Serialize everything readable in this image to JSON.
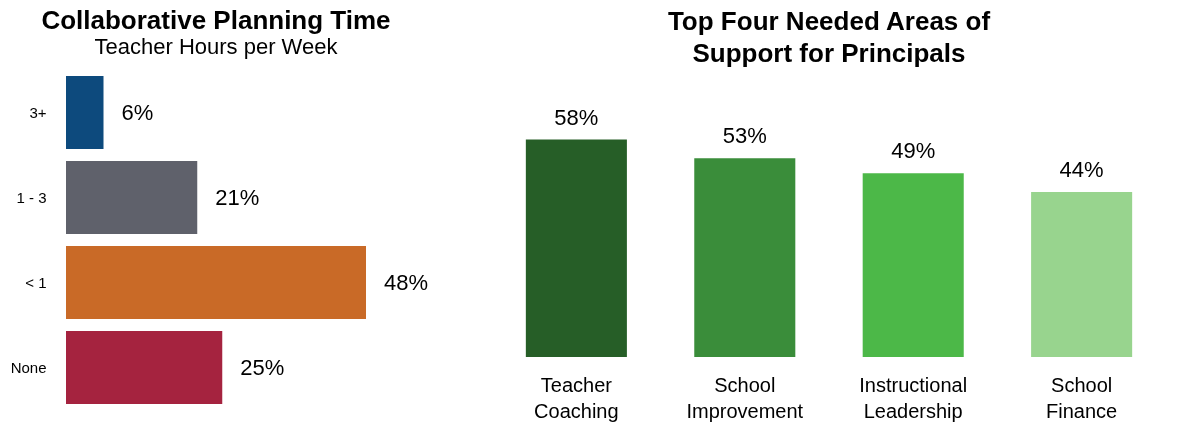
{
  "chart_data": [
    {
      "type": "bar",
      "orientation": "horizontal",
      "title": "Collaborative Planning Time",
      "subtitle": "Teacher Hours per Week",
      "categories": [
        "3+",
        "1 - 3",
        "< 1",
        "None"
      ],
      "values": [
        6,
        21,
        48,
        25
      ],
      "colors": [
        "#0d4a7d",
        "#5f616b",
        "#c96a27",
        "#a5233f"
      ],
      "value_labels": [
        "6%",
        "21%",
        "48%",
        "25%"
      ]
    },
    {
      "type": "bar",
      "title": "Top Four Needed Areas of Support for Principals",
      "categories": [
        "Teacher Coaching",
        "School Improvement",
        "Instructional Leadership",
        "School Finance"
      ],
      "values": [
        58,
        53,
        49,
        44
      ],
      "colors": [
        "#265e27",
        "#3a8d3a",
        "#4cb848",
        "#98d48e"
      ],
      "value_labels": [
        "58%",
        "53%",
        "49%",
        "44%"
      ]
    }
  ]
}
